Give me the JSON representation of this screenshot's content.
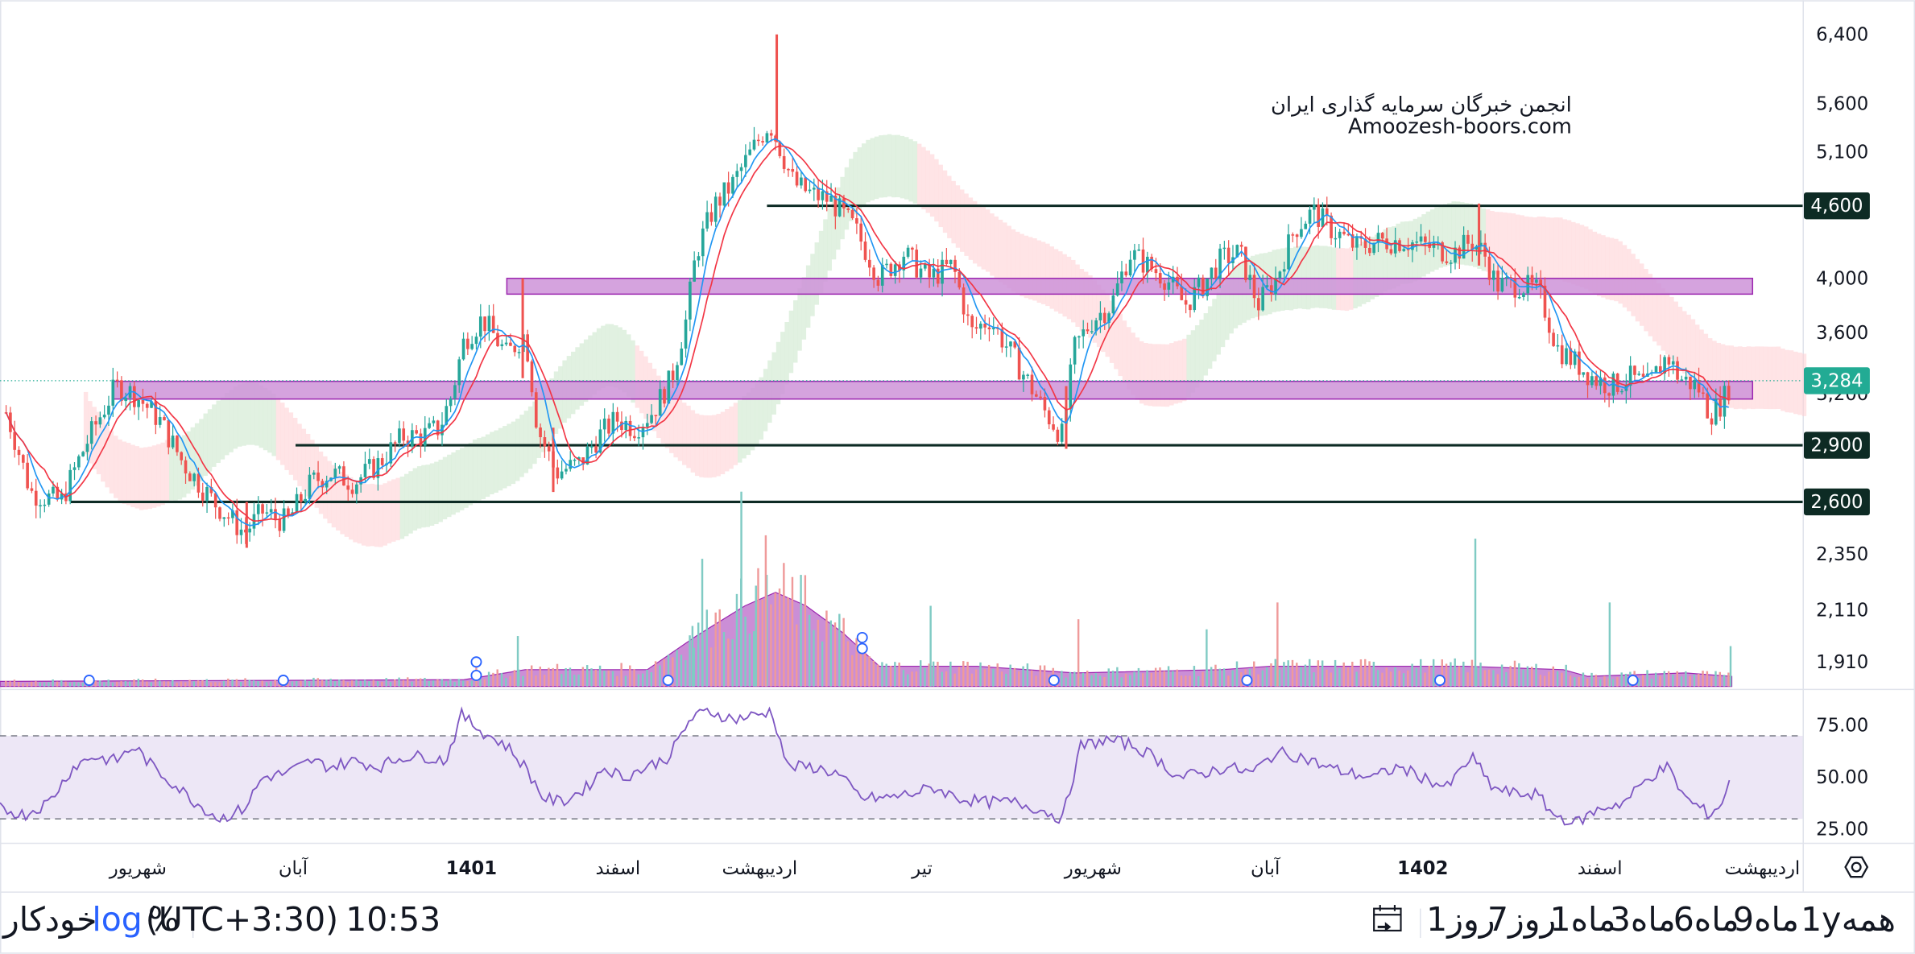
{
  "watermark": {
    "line1": "انجمن خبرگان سرمایه گذاری ایران",
    "line2": "Amoozesh-boors.com"
  },
  "colors": {
    "up": "#26a69a",
    "down": "#ef5350",
    "ma_fast": "#2196f3",
    "ma_slow": "#f23645",
    "zone_fill": "#ce93d8",
    "zone_border": "#9c27b0",
    "level_line": "#0d2b24",
    "rsi_line": "#7e57c2",
    "rsi_band": "#ede7f6",
    "volume_area": "#ba68c8",
    "current_price": "#22ab94"
  },
  "chart_data": [
    {
      "type": "candlestick",
      "scale": "log",
      "ylim": [
        1850,
        6700
      ],
      "price_ticks": [
        "6,400",
        "5,600",
        "5,100",
        "4,000",
        "3,600",
        "3,200",
        "2,350",
        "2,110",
        "1,910"
      ],
      "current_price": {
        "value": 3284,
        "label": "3,284"
      },
      "horizontal_levels": [
        {
          "value": 4600,
          "label": "4,600"
        },
        {
          "value": 2900,
          "label": "2,900"
        },
        {
          "value": 2600,
          "label": "2,600"
        }
      ],
      "zones": [
        {
          "low": 3880,
          "high": 4000
        },
        {
          "low": 3170,
          "high": 3280
        }
      ],
      "path": [
        [
          0,
          3200
        ],
        [
          25,
          2650
        ],
        [
          50,
          2600
        ],
        [
          70,
          2900
        ],
        [
          95,
          3250
        ],
        [
          110,
          3200
        ],
        [
          130,
          3050
        ],
        [
          150,
          2800
        ],
        [
          175,
          2600
        ],
        [
          200,
          2450
        ],
        [
          215,
          2550
        ],
        [
          235,
          2500
        ],
        [
          255,
          2700
        ],
        [
          270,
          2750
        ],
        [
          290,
          2700
        ],
        [
          310,
          2800
        ],
        [
          330,
          2950
        ],
        [
          345,
          2950
        ],
        [
          360,
          3000
        ],
        [
          370,
          3200
        ],
        [
          380,
          3550
        ],
        [
          395,
          3700
        ],
        [
          415,
          3450
        ],
        [
          430,
          3600
        ],
        [
          440,
          3000
        ],
        [
          455,
          2750
        ],
        [
          475,
          2800
        ],
        [
          490,
          2950
        ],
        [
          505,
          3050
        ],
        [
          520,
          3000
        ],
        [
          535,
          3100
        ],
        [
          550,
          3300
        ],
        [
          562,
          3700
        ],
        [
          570,
          4200
        ],
        [
          585,
          4600
        ],
        [
          600,
          4800
        ],
        [
          615,
          5100
        ],
        [
          630,
          5400
        ],
        [
          640,
          5100
        ],
        [
          650,
          4800
        ],
        [
          665,
          4700
        ],
        [
          680,
          4650
        ],
        [
          700,
          4400
        ],
        [
          720,
          4000
        ],
        [
          740,
          4200
        ],
        [
          760,
          4000
        ],
        [
          780,
          4100
        ],
        [
          795,
          3600
        ],
        [
          810,
          3700
        ],
        [
          825,
          3500
        ],
        [
          840,
          3300
        ],
        [
          855,
          3100
        ],
        [
          870,
          2950
        ],
        [
          880,
          3500
        ],
        [
          895,
          3700
        ],
        [
          910,
          3800
        ],
        [
          925,
          4200
        ],
        [
          940,
          4100
        ],
        [
          955,
          4000
        ],
        [
          970,
          3800
        ],
        [
          985,
          3950
        ],
        [
          1000,
          4150
        ],
        [
          1015,
          4200
        ],
        [
          1030,
          3800
        ],
        [
          1045,
          4000
        ],
        [
          1060,
          4400
        ],
        [
          1075,
          4550
        ],
        [
          1090,
          4400
        ],
        [
          1110,
          4250
        ],
        [
          1130,
          4300
        ],
        [
          1150,
          4300
        ],
        [
          1170,
          4250
        ],
        [
          1190,
          4200
        ],
        [
          1205,
          4300
        ],
        [
          1215,
          4200
        ],
        [
          1225,
          3950
        ],
        [
          1245,
          3950
        ],
        [
          1260,
          3900
        ],
        [
          1275,
          3500
        ],
        [
          1290,
          3400
        ],
        [
          1305,
          3300
        ],
        [
          1320,
          3250
        ],
        [
          1335,
          3300
        ],
        [
          1350,
          3250
        ],
        [
          1365,
          3450
        ],
        [
          1375,
          3300
        ],
        [
          1390,
          3250
        ],
        [
          1400,
          3080
        ],
        [
          1410,
          3150
        ],
        [
          1418,
          3284
        ]
      ],
      "spikes": [
        {
          "x": 636,
          "high": 6400,
          "low": 5200
        },
        {
          "x": 428,
          "high": 4000,
          "low": 3300
        },
        {
          "x": 1211,
          "high": 4620,
          "low": 4100
        },
        {
          "x": 873,
          "high": 3250,
          "low": 2880
        },
        {
          "x": 453,
          "high": 3000,
          "low": 2650
        },
        {
          "x": 202,
          "high": 2600,
          "low": 2380
        }
      ]
    },
    {
      "type": "bar",
      "series_role": "volume",
      "spikes": [
        [
          607,
          0.58
        ],
        [
          627,
          0.45
        ],
        [
          575,
          0.38
        ],
        [
          1208,
          0.44
        ],
        [
          1046,
          0.25
        ],
        [
          1318,
          0.25
        ],
        [
          762,
          0.24
        ],
        [
          883,
          0.2
        ],
        [
          988,
          0.17
        ],
        [
          1417,
          0.12
        ],
        [
          390,
          0.08
        ],
        [
          424,
          0.15
        ],
        [
          567,
          0.18
        ],
        [
          586,
          0.22
        ],
        [
          619,
          0.3
        ]
      ],
      "average_profile": [
        [
          0,
          0.015
        ],
        [
          380,
          0.02
        ],
        [
          430,
          0.05
        ],
        [
          530,
          0.05
        ],
        [
          570,
          0.15
        ],
        [
          610,
          0.24
        ],
        [
          635,
          0.28
        ],
        [
          660,
          0.24
        ],
        [
          690,
          0.16
        ],
        [
          720,
          0.06
        ],
        [
          800,
          0.06
        ],
        [
          880,
          0.04
        ],
        [
          1000,
          0.05
        ],
        [
          1040,
          0.06
        ],
        [
          1100,
          0.06
        ],
        [
          1200,
          0.06
        ],
        [
          1280,
          0.05
        ],
        [
          1300,
          0.03
        ],
        [
          1380,
          0.04
        ],
        [
          1418,
          0.03
        ]
      ],
      "event_markers": [
        73,
        232,
        390,
        390,
        547,
        706,
        706,
        863,
        1021,
        1179,
        1337
      ]
    },
    {
      "type": "line",
      "series_role": "rsi",
      "ylim": [
        18,
        100
      ],
      "ticks": [
        "75.00",
        "50.00",
        "25.00"
      ],
      "band": [
        30,
        70
      ],
      "path": [
        [
          0,
          35
        ],
        [
          20,
          32
        ],
        [
          40,
          38
        ],
        [
          60,
          55
        ],
        [
          75,
          60
        ],
        [
          95,
          58
        ],
        [
          110,
          65
        ],
        [
          125,
          55
        ],
        [
          140,
          48
        ],
        [
          160,
          38
        ],
        [
          180,
          30
        ],
        [
          200,
          35
        ],
        [
          215,
          50
        ],
        [
          235,
          52
        ],
        [
          255,
          58
        ],
        [
          270,
          55
        ],
        [
          290,
          58
        ],
        [
          310,
          55
        ],
        [
          330,
          60
        ],
        [
          350,
          60
        ],
        [
          365,
          58
        ],
        [
          378,
          80
        ],
        [
          395,
          72
        ],
        [
          415,
          65
        ],
        [
          430,
          55
        ],
        [
          445,
          40
        ],
        [
          460,
          38
        ],
        [
          480,
          45
        ],
        [
          495,
          55
        ],
        [
          510,
          50
        ],
        [
          530,
          55
        ],
        [
          548,
          60
        ],
        [
          565,
          78
        ],
        [
          580,
          82
        ],
        [
          600,
          78
        ],
        [
          620,
          80
        ],
        [
          632,
          82
        ],
        [
          645,
          55
        ],
        [
          665,
          55
        ],
        [
          685,
          52
        ],
        [
          705,
          40
        ],
        [
          725,
          40
        ],
        [
          745,
          42
        ],
        [
          765,
          45
        ],
        [
          785,
          40
        ],
        [
          805,
          38
        ],
        [
          830,
          38
        ],
        [
          850,
          35
        ],
        [
          870,
          30
        ],
        [
          885,
          65
        ],
        [
          905,
          68
        ],
        [
          925,
          66
        ],
        [
          945,
          60
        ],
        [
          965,
          50
        ],
        [
          985,
          52
        ],
        [
          1005,
          55
        ],
        [
          1025,
          52
        ],
        [
          1045,
          62
        ],
        [
          1065,
          60
        ],
        [
          1085,
          55
        ],
        [
          1105,
          52
        ],
        [
          1125,
          50
        ],
        [
          1145,
          55
        ],
        [
          1165,
          50
        ],
        [
          1185,
          45
        ],
        [
          1205,
          60
        ],
        [
          1222,
          45
        ],
        [
          1240,
          42
        ],
        [
          1258,
          42
        ],
        [
          1272,
          32
        ],
        [
          1290,
          28
        ],
        [
          1310,
          35
        ],
        [
          1330,
          38
        ],
        [
          1350,
          50
        ],
        [
          1365,
          55
        ],
        [
          1380,
          40
        ],
        [
          1400,
          32
        ],
        [
          1410,
          38
        ],
        [
          1418,
          50
        ]
      ]
    }
  ],
  "x_axis": {
    "labels": [
      {
        "x": 113,
        "text": "شهریور"
      },
      {
        "x": 240,
        "text": "آبان"
      },
      {
        "x": 386,
        "text": "1401"
      },
      {
        "x": 506,
        "text": "اسفند"
      },
      {
        "x": 622,
        "text": "اردیبهشت"
      },
      {
        "x": 755,
        "text": "تیر"
      },
      {
        "x": 895,
        "text": "شهریور"
      },
      {
        "x": 1036,
        "text": "آبان"
      },
      {
        "x": 1165,
        "text": "1402"
      },
      {
        "x": 1310,
        "text": "اسفند"
      },
      {
        "x": 1443,
        "text": "اردیبهشت"
      }
    ]
  },
  "toolbar": {
    "ranges": [
      "همه",
      "1y",
      "9ماه",
      "6ماه",
      "3ماه",
      "1ماه",
      "7روز",
      "1روز"
    ],
    "time": "10:53",
    "timezone": "(UTC+3:30)",
    "percent": "%",
    "log": "log",
    "auto": "خودکار"
  }
}
